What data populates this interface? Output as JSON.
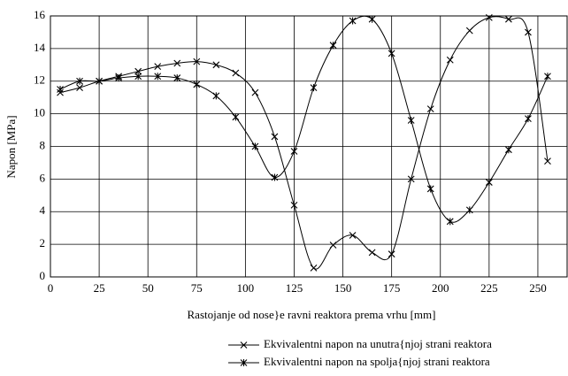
{
  "chart_data": {
    "type": "line",
    "x_label": "Rastojanje od nose}e ravni reaktora prema vrhu [mm]",
    "y_label": "Napon  [MPa]",
    "x": [
      5,
      15,
      25,
      35,
      45,
      55,
      65,
      75,
      85,
      95,
      105,
      115,
      125,
      135,
      145,
      155,
      165,
      175,
      185,
      195,
      205,
      215,
      225,
      235,
      245,
      255
    ],
    "series": [
      {
        "name": "Ekvivalentni napon na unutra{njoj strani reaktora",
        "color": "#000000",
        "marker": "x",
        "values": [
          11.3,
          11.6,
          12.0,
          12.3,
          12.6,
          12.9,
          13.1,
          13.2,
          13.0,
          12.5,
          11.3,
          8.6,
          4.4,
          0.55,
          1.95,
          2.55,
          1.5,
          1.4,
          6.0,
          10.3,
          13.3,
          15.1,
          15.9,
          15.8,
          15.0,
          7.1
        ]
      },
      {
        "name": "Ekvivalentni napon na spolja{njoj strani reaktora",
        "color": "#000000",
        "marker": "star",
        "values": [
          11.5,
          12.0,
          12.0,
          12.2,
          12.3,
          12.3,
          12.2,
          11.8,
          11.1,
          9.8,
          8.0,
          6.1,
          7.7,
          11.6,
          14.2,
          15.7,
          15.8,
          13.7,
          9.6,
          5.4,
          3.4,
          4.1,
          5.8,
          7.8,
          9.7,
          12.3
        ]
      }
    ],
    "xlim": [
      0,
      265
    ],
    "xticks": [
      0,
      25,
      50,
      75,
      100,
      125,
      150,
      175,
      200,
      225,
      250
    ],
    "ylim": [
      0,
      16
    ],
    "yticks": [
      0,
      2,
      4,
      6,
      8,
      10,
      12,
      14,
      16
    ],
    "grid": true,
    "legend": "bottom"
  }
}
